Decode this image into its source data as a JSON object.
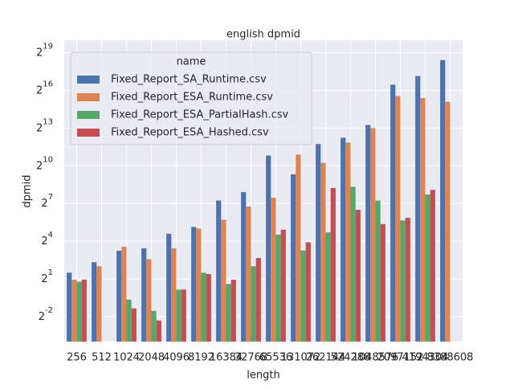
{
  "chart_data": {
    "type": "bar",
    "title": "english dpmid",
    "x_label": "length",
    "y_label": "dpmid",
    "categories": [
      "256",
      "512",
      "1024",
      "2048",
      "4096",
      "8192",
      "16384",
      "32768",
      "65536",
      "131072",
      "262144",
      "524288",
      "1048576",
      "2097152",
      "4194304",
      "8388608"
    ],
    "series": [
      {
        "name": "Fixed_Report_SA_Runtime.csv",
        "color": "#4c72b0",
        "values": [
          2.8,
          5,
          9.4,
          10.8,
          24,
          35,
          150,
          240,
          1800,
          640,
          3400,
          4800,
          9700,
          90000,
          145000,
          350000
        ]
      },
      {
        "name": "Fixed_Report_ESA_Runtime.csv",
        "color": "#dd8452",
        "values": [
          1.9,
          4,
          11.7,
          5.9,
          10.8,
          32,
          52,
          108,
          175,
          1900,
          1200,
          3700,
          8200,
          48000,
          43000,
          35000
        ]
      },
      {
        "name": "Fixed_Report_ESA_PartialHash.csv",
        "color": "#55a868",
        "values": [
          1.7,
          null,
          0.63,
          0.34,
          1.1,
          2.8,
          1.5,
          4,
          23,
          9.5,
          26,
          320,
          150,
          50,
          210,
          null
        ]
      },
      {
        "name": "Fixed_Report_ESA_Hashed.csv",
        "color": "#c44e52",
        "values": [
          1.9,
          null,
          0.39,
          0.2,
          1.1,
          2.6,
          1.9,
          6.3,
          30,
          15,
          300,
          90,
          41,
          58,
          270,
          null
        ]
      }
    ],
    "legend_title": "name",
    "legend": "upper left",
    "log_y": true,
    "log_base": 2,
    "grid": true,
    "ylim": [
      0.0625,
      1048576
    ],
    "yticks": [
      {
        "value": 0.25,
        "label": "2^-2"
      },
      {
        "value": 2,
        "label": "2^1"
      },
      {
        "value": 16,
        "label": "2^4"
      },
      {
        "value": 128,
        "label": "2^7"
      },
      {
        "value": 1024,
        "label": "2^10"
      },
      {
        "value": 8192,
        "label": "2^13"
      },
      {
        "value": 65536,
        "label": "2^16"
      },
      {
        "value": 524288,
        "label": "2^19"
      }
    ]
  }
}
